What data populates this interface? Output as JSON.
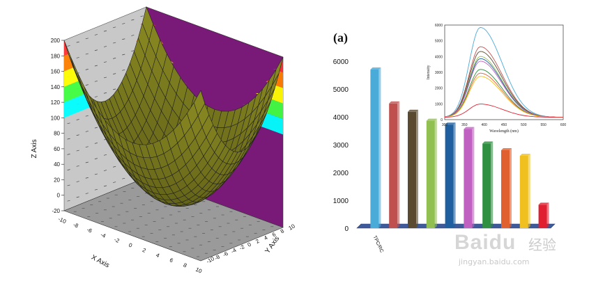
{
  "chart_data": [
    {
      "type": "surface",
      "xlabel": "X Axis",
      "ylabel": "Y Axis",
      "zlabel": "Z Axis",
      "x_ticks": [
        "-10",
        "-8",
        "-6",
        "-4",
        "-2",
        "0",
        "2",
        "4",
        "6",
        "8",
        "10"
      ],
      "y_ticks": [
        "-10",
        "-8",
        "-6",
        "-4",
        "-2",
        "0",
        "2",
        "4",
        "6",
        "8",
        "10"
      ],
      "z_ticks": [
        "-20",
        "0",
        "20",
        "40",
        "60",
        "80",
        "100",
        "120",
        "140",
        "160",
        "180",
        "200"
      ],
      "xlim": [
        -10,
        10
      ],
      "ylim": [
        -10,
        10
      ],
      "zlim": [
        -20,
        200
      ],
      "function": "z = x^2 + y^2",
      "surface_color": "#808020",
      "back_wall_left_color": "#c8c8c8",
      "back_wall_right_color": "#7a1a78",
      "floor_color": "#9a9a9a",
      "contour_colors": [
        "#ff3030",
        "#ff8000",
        "#ffff00",
        "#40ff40",
        "#00ffff"
      ]
    },
    {
      "type": "bar",
      "panel_label": "(a)",
      "categories": [
        "TPC/RC",
        "",
        "",
        "",
        "",
        "",
        "",
        "",
        "",
        ""
      ],
      "values": [
        5700,
        4480,
        4180,
        3860,
        3720,
        3560,
        3040,
        2800,
        2600,
        840
      ],
      "bar_colors": [
        "#4aaad8",
        "#c0504d",
        "#5a4a30",
        "#92c050",
        "#1f5fa0",
        "#c060c0",
        "#2e9040",
        "#e06030",
        "#f0c020",
        "#e02030"
      ],
      "ylim": [
        0,
        6000
      ],
      "y_ticks": [
        "0",
        "1000",
        "2000",
        "3000",
        "4000",
        "5000",
        "6000"
      ],
      "grid": false
    },
    {
      "type": "line",
      "title": "",
      "xlabel": "Wavelength (nm)",
      "ylabel": "Intensity",
      "xlim": [
        300,
        600
      ],
      "ylim": [
        0,
        6000
      ],
      "x_ticks": [
        "300",
        "350",
        "400",
        "450",
        "500",
        "550",
        "600"
      ],
      "y_ticks": [
        "0",
        "1000",
        "2000",
        "3000",
        "4000",
        "5000",
        "6000"
      ],
      "peak_x": 390,
      "series": [
        {
          "color": "#4aaad8",
          "peak": 5700
        },
        {
          "color": "#c0504d",
          "peak": 4480
        },
        {
          "color": "#5a4a30",
          "peak": 4180
        },
        {
          "color": "#92c050",
          "peak": 3860
        },
        {
          "color": "#1f5fa0",
          "peak": 3720
        },
        {
          "color": "#c060c0",
          "peak": 3560
        },
        {
          "color": "#2e9040",
          "peak": 3040
        },
        {
          "color": "#e06030",
          "peak": 2800
        },
        {
          "color": "#f0c020",
          "peak": 2600
        },
        {
          "color": "#e02030",
          "peak": 840
        }
      ]
    }
  ],
  "watermark": {
    "logo": "Baidu",
    "sub": "经验",
    "url": "jingyan.baidu.com"
  }
}
